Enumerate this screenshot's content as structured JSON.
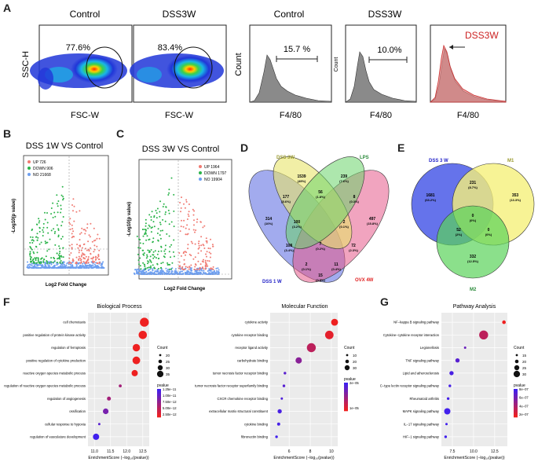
{
  "panels": {
    "A": "A",
    "B": "B",
    "C": "C",
    "D": "D",
    "E": "E",
    "F": "F",
    "G": "G"
  },
  "panelA": {
    "flow1": {
      "title": "Control",
      "percent": "77.6%"
    },
    "flow2": {
      "title": "DSS3W",
      "percent": "83.4%"
    },
    "flow_y_axis": "SSC-H",
    "flow_x_axis": "FSC-W",
    "hist1": {
      "title": "Control",
      "percent": "15.7 %",
      "ylabel": "Count",
      "xlabel": "F4/80"
    },
    "hist2": {
      "title": "DSS3W",
      "percent": "10.0%",
      "ylabel": "Count",
      "xlabel": "F4/80"
    },
    "hist3": {
      "legend": "DSS3W",
      "xlabel": "F4/80",
      "colors": {
        "control": "#888888",
        "dss": "#e06060",
        "label": "#cc2222"
      }
    }
  },
  "panelB": {
    "title": "DSS 1W VS Control",
    "xlabel": "Log2 Fold Change",
    "ylabel": "-Log10(p value)",
    "legend": [
      {
        "label": "UP 726",
        "color": "#f07a72"
      },
      {
        "label": "DOWN 906",
        "color": "#2bb44a"
      },
      {
        "label": "NO 21668",
        "color": "#6e9ff0"
      }
    ]
  },
  "panelC": {
    "title": "DSS 3W VS Control",
    "xlabel": "Log2 Fold Change",
    "ylabel": "-Log10(p value)",
    "legend": [
      {
        "label": "UP 1964",
        "color": "#f07a72"
      },
      {
        "label": "DOWN 1797",
        "color": "#2bb44a"
      },
      {
        "label": "NO 19904",
        "color": "#6e9ff0"
      }
    ]
  },
  "panelD": {
    "sets": [
      {
        "label": "DSS 3W",
        "color": "#9a9a30"
      },
      {
        "label": "LPS",
        "color": "#2a8a3a"
      },
      {
        "label": "DSS 1 W",
        "color": "#2323c8"
      },
      {
        "label": "OVX 4W",
        "color": "#e02020"
      }
    ],
    "regions": [
      {
        "n": "1539",
        "p": "(49%)"
      },
      {
        "n": "239",
        "p": "(7.6%)"
      },
      {
        "n": "314",
        "p": "(10%)"
      },
      {
        "n": "497",
        "p": "(15.8%)"
      },
      {
        "n": "177",
        "p": "(5.6%)"
      },
      {
        "n": "56",
        "p": "(1.8%)"
      },
      {
        "n": "8",
        "p": "(0.3%)"
      },
      {
        "n": "100",
        "p": "(3.2%)"
      },
      {
        "n": "2",
        "p": "(0.1%)"
      },
      {
        "n": "108",
        "p": "(3.4%)"
      },
      {
        "n": "7",
        "p": "(0.2%)"
      },
      {
        "n": "72",
        "p": "(2.3%)"
      },
      {
        "n": "2",
        "p": "(0.1%)"
      },
      {
        "n": "11",
        "p": "(0.4%)"
      },
      {
        "n": "15",
        "p": "(0.5%)"
      }
    ]
  },
  "panelE": {
    "sets": [
      {
        "label": "DSS 3 W",
        "color": "#2323c8"
      },
      {
        "label": "M1",
        "color": "#9a9a30"
      },
      {
        "label": "M2",
        "color": "#2a8a3a"
      }
    ],
    "regions": [
      {
        "n": "1681",
        "p": "(63.2%)"
      },
      {
        "n": "231",
        "p": "(8.7%)"
      },
      {
        "n": "353",
        "p": "(13.3%)"
      },
      {
        "n": "52",
        "p": "(2%)"
      },
      {
        "n": "0",
        "p": "(0%)"
      },
      {
        "n": "0",
        "p": "(0%)"
      },
      {
        "n": "332",
        "p": "(12.5%)"
      }
    ]
  },
  "chart_data": [
    {
      "type": "scatter",
      "title": "Biological Process",
      "xlabel": "EnrichmentScore (−log₁₀(pvalue))",
      "xticks": [
        "11.0",
        "11.5",
        "12.0",
        "12.5"
      ],
      "xlim": [
        10.8,
        12.7
      ],
      "categories": [
        "cell chemotaxis",
        "positive regulation of protein kinase activity",
        "regulation of ferroptosis",
        "positive regulation of cytokine production",
        "reactive oxygen species metabolic process",
        "regulation of reactive oxygen species metabolic process",
        "regulation of angiogenesis",
        "ossification",
        "cellular response to hypoxia",
        "regulation of vasculature development"
      ],
      "x": [
        12.55,
        12.5,
        12.3,
        12.3,
        12.25,
        11.8,
        11.45,
        11.35,
        11.15,
        11.05
      ],
      "count": [
        30,
        28,
        25,
        26,
        22,
        12,
        15,
        20,
        10,
        22
      ],
      "pvalue": [
        2.5e-12,
        2.5e-12,
        2.5e-12,
        2.5e-12,
        2.5e-12,
        5e-12,
        5e-12,
        7.5e-12,
        1e-11,
        1.25e-11
      ],
      "legend_count_title": "Count",
      "legend_count": [
        "20",
        "25",
        "30",
        "35"
      ],
      "legend_p_title": "pvalue",
      "legend_p": [
        "1.25e−11",
        "1.00e−11",
        "7.50e−12",
        "5.00e−12",
        "2.50e−12"
      ]
    },
    {
      "type": "scatter",
      "title": "Molecular Function",
      "xlabel": "EnrichmentScore (−log₁₀(pvalue))",
      "xticks": [
        "6",
        "8",
        "10"
      ],
      "xlim": [
        4.2,
        10.6
      ],
      "categories": [
        "cytokine activity",
        "cytokine receptor binding",
        "receptor ligand activity",
        "carbohydrate binding",
        "tumor necrosis factor receptor binding",
        "tumor necrosis factor receptor superfamily binding",
        "CXCR chemokine receptor binding",
        "extracellular matrix structural constituent",
        "cytokine binding",
        "fibronectin binding"
      ],
      "x": [
        10.3,
        9.8,
        8.1,
        6.9,
        5.6,
        5.5,
        5.3,
        5.1,
        5.0,
        4.8
      ],
      "count": [
        22,
        28,
        30,
        20,
        6,
        6,
        5,
        12,
        8,
        6
      ],
      "pvalue": [
        1e-10,
        2e-10,
        3e-09,
        1e-07,
        2.5e-06,
        3e-06,
        5e-06,
        8e-06,
        1e-05,
        1.5e-05
      ],
      "legend_count_title": "Count",
      "legend_count": [
        "10",
        "20",
        "30"
      ],
      "legend_p_title": "pvalue",
      "legend_p": [
        "2e−05",
        "1e−05"
      ]
    },
    {
      "type": "scatter",
      "title": "Pathway Analysis",
      "xlabel": "EnrichmentScore (−log₁₀(pvalue))",
      "xticks": [
        "7.5",
        "10.0",
        "12.5"
      ],
      "xlim": [
        6.2,
        14.0
      ],
      "categories": [
        "NF−kappa B signaling pathway",
        "Cytokine−cytokine receptor interaction",
        "Legionellosis",
        "TNF signaling pathway",
        "Lipid and atherosclerosis",
        "C−type lectin receptor signaling pathway",
        "Rheumatoid arthritis",
        "MAPK signaling pathway",
        "IL−17 signaling pathway",
        "HIF−1 signaling pathway"
      ],
      "x": [
        13.6,
        11.2,
        9.0,
        8.1,
        7.4,
        7.2,
        7.0,
        6.9,
        6.8,
        6.7
      ],
      "count": [
        10,
        30,
        5,
        12,
        12,
        6,
        6,
        20,
        5,
        6
      ],
      "pvalue": [
        1e-14,
        1e-12,
        2e-09,
        1e-08,
        4e-08,
        5e-08,
        6e-08,
        8e-08,
        9e-08,
        9.5e-08
      ],
      "legend_count_title": "Count",
      "legend_count": [
        "15",
        "20",
        "25",
        "30"
      ],
      "legend_p_title": "pvalue",
      "legend_p": [
        "8e−07",
        "6e−07",
        "4e−07",
        "2e−07"
      ]
    }
  ]
}
